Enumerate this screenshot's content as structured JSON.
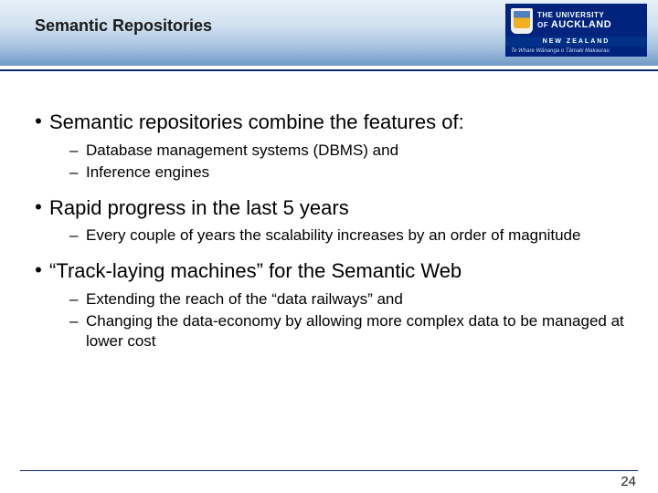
{
  "header": {
    "title": "Semantic Repositories",
    "logo": {
      "line1": "THE UNIVERSITY",
      "line2": "OF",
      "line3": "AUCKLAND",
      "nz": "NEW ZEALAND",
      "maori": "Te Whare Wānanga o Tāmaki Makaurau"
    }
  },
  "bullets": {
    "b1": "Semantic repositories combine the features of:",
    "b1s1": "Database management systems (DBMS) and",
    "b1s2": "Inference engines",
    "b2": "Rapid progress in the last 5 years",
    "b2s1": "Every couple of years the scalability increases by an order of magnitude",
    "b3": "“Track-laying machines” for the Semantic Web",
    "b3s1": "Extending the reach of the “data railways” and",
    "b3s2": "Changing the data-economy by allowing more complex data to be managed at lower cost"
  },
  "page": "24",
  "colors": {
    "brand_navy": "#00247d",
    "rule": "#0b2a6f"
  }
}
